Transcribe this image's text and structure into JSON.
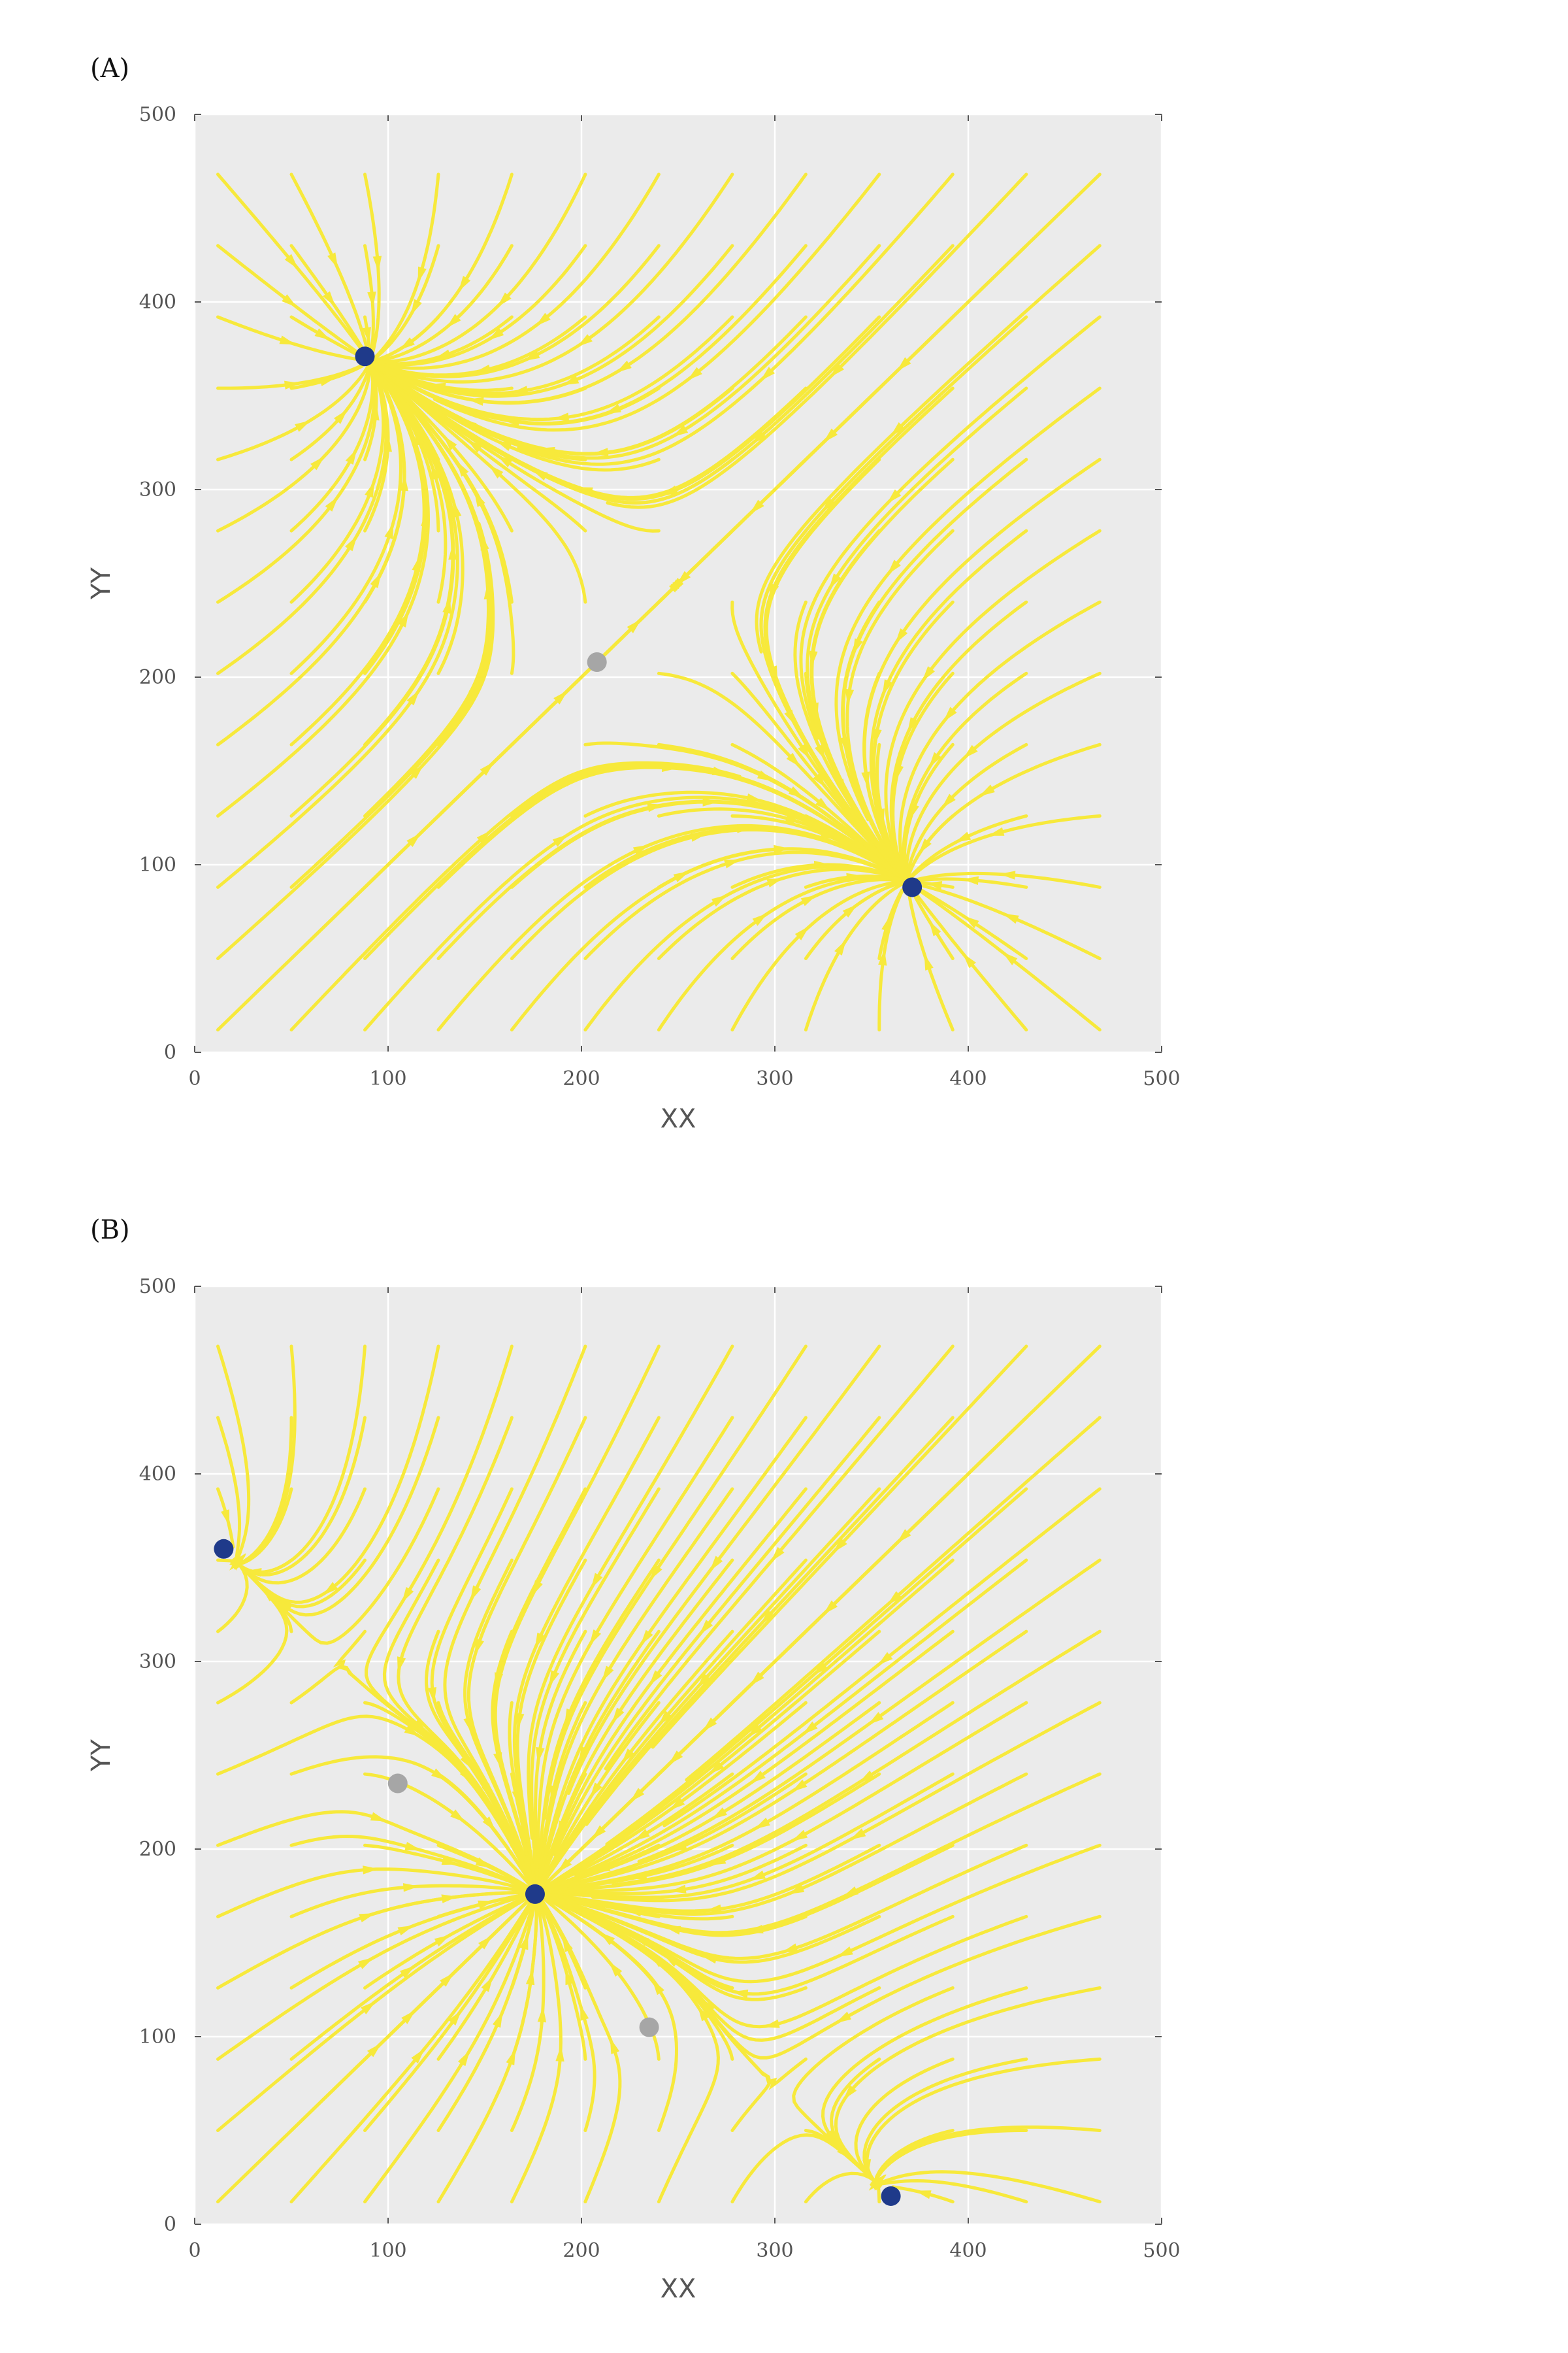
{
  "chart_data": [
    {
      "panel_label": "(A)",
      "type": "streamplot",
      "xlabel": "XX",
      "ylabel": "YY",
      "xlim": [
        0,
        500
      ],
      "ylim": [
        0,
        500
      ],
      "xticks": [
        "0",
        "100",
        "200",
        "300",
        "400",
        "500"
      ],
      "yticks": [
        "0",
        "100",
        "200",
        "300",
        "400",
        "500"
      ],
      "grid": true,
      "background": "#ebebeb",
      "colormap": [
        "#d7301f",
        "#f16913",
        "#fdae2b",
        "#f7e93b"
      ],
      "stable_points": [
        [
          88,
          371
        ],
        [
          371,
          88
        ]
      ],
      "unstable_points": [
        [
          208,
          208
        ]
      ],
      "stable_point_color": "#1f3a8a",
      "unstable_point_color": "#a6a6a6"
    },
    {
      "panel_label": "(B)",
      "type": "streamplot",
      "xlabel": "XX",
      "ylabel": "YY",
      "xlim": [
        0,
        500
      ],
      "ylim": [
        0,
        500
      ],
      "xticks": [
        "0",
        "100",
        "200",
        "300",
        "400",
        "500"
      ],
      "yticks": [
        "0",
        "100",
        "200",
        "300",
        "400",
        "500"
      ],
      "grid": true,
      "background": "#ebebeb",
      "colormap": [
        "#d7301f",
        "#f16913",
        "#fdae2b",
        "#f7e93b"
      ],
      "stable_points": [
        [
          15,
          360
        ],
        [
          176,
          176
        ],
        [
          360,
          15
        ]
      ],
      "unstable_points": [
        [
          105,
          235
        ],
        [
          235,
          105
        ]
      ],
      "stable_point_color": "#1f3a8a",
      "unstable_point_color": "#a6a6a6"
    }
  ]
}
